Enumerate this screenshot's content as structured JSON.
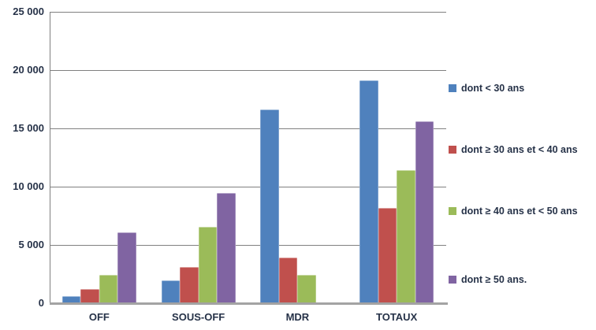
{
  "chart_data": {
    "type": "bar",
    "title": "",
    "xlabel": "",
    "ylabel": "",
    "categories": [
      "OFF",
      "SOUS-OFF",
      "MDR",
      "TOTAUX"
    ],
    "series": [
      {
        "name": "dont < 30 ans",
        "color": "#4F81BD",
        "values": [
          600,
          1950,
          16600,
          19150
        ]
      },
      {
        "name": "dont ≥ 30 ans et < 40 ans",
        "color": "#C0504D",
        "values": [
          1200,
          3100,
          3900,
          8200
        ]
      },
      {
        "name": "dont ≥ 40 ans et < 50 ans",
        "color": "#9BBB59",
        "values": [
          2450,
          6550,
          2400,
          11400
        ]
      },
      {
        "name": "dont ≥ 50 ans.",
        "color": "#8064A2",
        "values": [
          6050,
          9450,
          100,
          15600
        ]
      }
    ],
    "ylim": [
      0,
      25000
    ],
    "ytick_step": 5000,
    "ytick_labels": [
      "0",
      "5 000",
      "10 000",
      "15 000",
      "20 000",
      "25 000"
    ],
    "grid": true,
    "legend_position": "right"
  },
  "colors": {
    "background": "#FFFFFF",
    "gridline": "#808080",
    "axis": "#A3A3A3",
    "text": "#263248"
  }
}
